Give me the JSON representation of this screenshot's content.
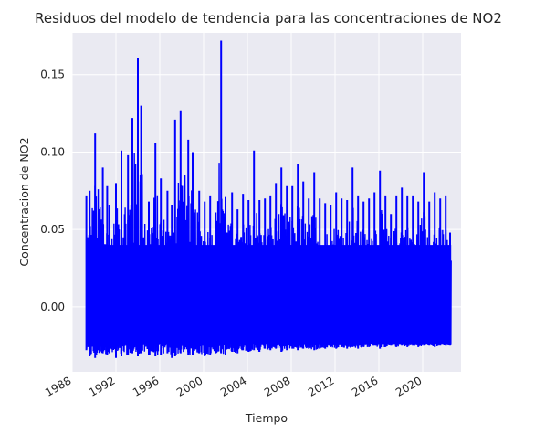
{
  "chart_data": {
    "type": "line",
    "title": "Residuos del modelo de tendencia para las concentraciones de NO2",
    "xlabel": "Tiempo",
    "ylabel": "Concentracion de NO2",
    "x_range": [
      1988,
      2023.5
    ],
    "ylim": [
      -0.042,
      0.177
    ],
    "x_ticks": [
      "1988",
      "1992",
      "1996",
      "2000",
      "2004",
      "2008",
      "2012",
      "2016",
      "2020"
    ],
    "y_ticks": [
      "0.00",
      "0.05",
      "0.10",
      "0.15"
    ],
    "grid": true,
    "background": "#eaeaf2",
    "series": [
      {
        "color": "#0000ff",
        "data_start": 1989.3,
        "data_end": 2022.6,
        "x": [
          1989.3,
          1989.6,
          1990.1,
          1990.8,
          1991.2,
          1991.4,
          1992.0,
          1992.5,
          1993.1,
          1993.5,
          1994.0,
          1994.3,
          1995.0,
          1995.6,
          1996.1,
          1996.7,
          1997.1,
          1997.4,
          1997.9,
          1998.6,
          1999.0,
          1999.6,
          2000.1,
          2000.6,
          2001.1,
          2001.6,
          2002.0,
          2002.6,
          2003.1,
          2003.6,
          2004.1,
          2004.6,
          2005.1,
          2005.6,
          2006.1,
          2006.6,
          2007.1,
          2007.6,
          2008.1,
          2008.6,
          2009.1,
          2009.6,
          2010.1,
          2010.6,
          2011.1,
          2011.6,
          2012.1,
          2012.6,
          2013.1,
          2013.6,
          2014.1,
          2014.6,
          2015.1,
          2015.6,
          2016.1,
          2016.6,
          2017.1,
          2017.6,
          2018.1,
          2018.6,
          2019.1,
          2019.6,
          2020.1,
          2020.6,
          2021.1,
          2021.6,
          2022.1,
          2022.5
        ],
        "high": [
          0.072,
          0.075,
          0.112,
          0.09,
          0.078,
          0.066,
          0.08,
          0.101,
          0.098,
          0.122,
          0.161,
          0.13,
          0.068,
          0.106,
          0.083,
          0.075,
          0.066,
          0.121,
          0.127,
          0.108,
          0.1,
          0.075,
          0.068,
          0.072,
          0.061,
          0.172,
          0.071,
          0.074,
          0.063,
          0.073,
          0.069,
          0.101,
          0.069,
          0.07,
          0.072,
          0.08,
          0.09,
          0.078,
          0.078,
          0.092,
          0.081,
          0.07,
          0.087,
          0.07,
          0.067,
          0.066,
          0.074,
          0.07,
          0.069,
          0.09,
          0.072,
          0.068,
          0.07,
          0.074,
          0.088,
          0.072,
          0.06,
          0.072,
          0.077,
          0.072,
          0.072,
          0.068,
          0.087,
          0.068,
          0.074,
          0.07,
          0.072,
          0.048
        ],
        "low": [
          -0.028,
          -0.032,
          -0.033,
          -0.03,
          -0.031,
          -0.03,
          -0.033,
          -0.032,
          -0.031,
          -0.03,
          -0.032,
          -0.03,
          -0.031,
          -0.032,
          -0.031,
          -0.03,
          -0.033,
          -0.032,
          -0.03,
          -0.031,
          -0.031,
          -0.03,
          -0.032,
          -0.031,
          -0.03,
          -0.03,
          -0.031,
          -0.029,
          -0.03,
          -0.028,
          -0.029,
          -0.028,
          -0.029,
          -0.027,
          -0.028,
          -0.027,
          -0.029,
          -0.028,
          -0.027,
          -0.028,
          -0.027,
          -0.027,
          -0.028,
          -0.027,
          -0.027,
          -0.026,
          -0.027,
          -0.026,
          -0.027,
          -0.026,
          -0.027,
          -0.026,
          -0.026,
          -0.025,
          -0.027,
          -0.026,
          -0.025,
          -0.026,
          -0.025,
          -0.026,
          -0.025,
          -0.026,
          -0.025,
          -0.025,
          -0.026,
          -0.025,
          -0.025,
          -0.025
        ],
        "band_upper": 0.04,
        "band_lower": -0.024
      }
    ]
  }
}
